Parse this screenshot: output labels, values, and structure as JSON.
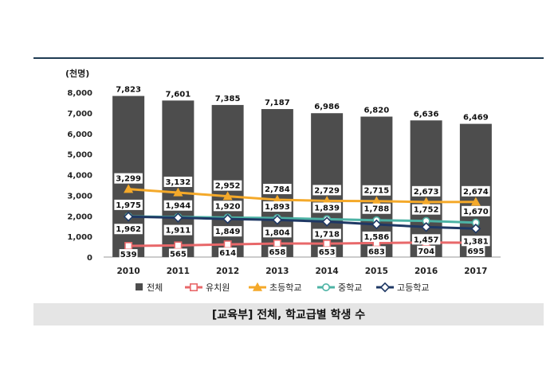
{
  "caption": "[교육부] 전체, 학교급별 학생 수",
  "chart_data": {
    "type": "bar",
    "unit_label": "(천명)",
    "categories": [
      "2010",
      "2011",
      "2012",
      "2013",
      "2014",
      "2015",
      "2016",
      "2017"
    ],
    "ylim": [
      0,
      8000
    ],
    "yticks": [
      "0",
      "1,000",
      "2,000",
      "3,000",
      "4,000",
      "5,000",
      "6,000",
      "7,000",
      "8,000"
    ],
    "grid": false,
    "legend_position": "bottom",
    "series": [
      {
        "name": "전체",
        "kind": "bar",
        "color": "#4d4d4d",
        "values": [
          7823,
          7601,
          7385,
          7187,
          6986,
          6820,
          6636,
          6469
        ],
        "labels": [
          "7,823",
          "7,601",
          "7,385",
          "7,187",
          "6,986",
          "6,820",
          "6,636",
          "6,469"
        ]
      },
      {
        "name": "유치원",
        "kind": "line",
        "color": "#e8686a",
        "marker": "square",
        "values": [
          539,
          565,
          614,
          658,
          653,
          683,
          704,
          695
        ],
        "labels": [
          "539",
          "565",
          "614",
          "658",
          "653",
          "683",
          "704",
          "695"
        ]
      },
      {
        "name": "초등학교",
        "kind": "line",
        "color": "#f4a92a",
        "marker": "triangle",
        "values": [
          3299,
          3132,
          2952,
          2784,
          2729,
          2715,
          2673,
          2674
        ],
        "labels": [
          "3,299",
          "3,132",
          "2,952",
          "2,784",
          "2,729",
          "2,715",
          "2,673",
          "2,674"
        ]
      },
      {
        "name": "중학교",
        "kind": "line",
        "color": "#4db3a5",
        "marker": "circle",
        "values": [
          1975,
          1944,
          1920,
          1893,
          1839,
          1788,
          1752,
          1670
        ],
        "labels": [
          "1,975",
          "1,944",
          "1,920",
          "1,893",
          "1,839",
          "1,788",
          "1,752",
          "1,670"
        ]
      },
      {
        "name": "고등학교",
        "kind": "line",
        "color": "#1f3864",
        "marker": "diamond",
        "values": [
          1962,
          1911,
          1849,
          1804,
          1718,
          1586,
          1457,
          1381
        ],
        "labels": [
          "1,962",
          "1,911",
          "1,849",
          "1,804",
          "1,718",
          "1,586",
          "1,457",
          "1,381"
        ]
      }
    ]
  }
}
